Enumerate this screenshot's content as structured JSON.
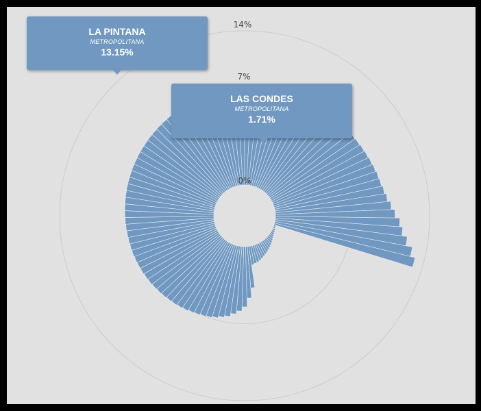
{
  "chart_data": {
    "type": "radial-bar",
    "ring_labels": [
      "14%",
      "7%",
      "0%"
    ],
    "rings": [
      14,
      7
    ],
    "rmax": 14,
    "grid": true,
    "series_color": "#7098c0",
    "values": [
      3.78,
      4.68,
      5.48,
      5.87,
      6.16,
      6.45,
      6.62,
      6.8,
      6.92,
      7.01,
      7.09,
      7.16,
      7.26,
      7.33,
      7.4,
      7.45,
      7.52,
      7.58,
      7.64,
      7.7,
      7.74,
      7.8,
      7.83,
      7.87,
      7.91,
      7.93,
      7.96,
      7.98,
      8.02,
      8.05,
      8.08,
      8.1,
      8.13,
      8.16,
      8.19,
      8.21,
      8.23,
      8.26,
      8.28,
      8.31,
      8.33,
      8.35,
      8.38,
      8.4,
      8.43,
      8.45,
      8.48,
      8.5,
      8.52,
      8.55,
      8.57,
      8.6,
      8.62,
      8.65,
      8.67,
      8.7,
      8.72,
      8.75,
      8.78,
      8.8,
      8.84,
      8.87,
      8.9,
      8.93,
      8.97,
      9.01,
      9.05,
      9.09,
      9.13,
      9.17,
      9.22,
      9.26,
      9.31,
      9.36,
      9.42,
      9.47,
      9.54,
      9.6,
      9.68,
      9.75,
      9.84,
      9.91,
      10.05,
      10.23,
      10.53,
      10.85,
      11.3,
      11.6,
      12.1,
      12.7,
      13.15,
      0.16,
      0.2,
      0.25,
      0.3,
      0.35,
      0.4,
      0.45,
      0.55,
      0.65,
      0.75,
      0.85,
      0.95,
      1.05,
      1.15,
      1.25,
      1.35,
      1.45,
      1.55,
      1.62,
      1.71
    ],
    "highlighted": [
      {
        "name": "LA PINTANA",
        "region": "METROPOLITANA",
        "value": "13.15%"
      },
      {
        "name": "LAS CONDES",
        "region": "METROPOLITANA",
        "value": "1.71%"
      }
    ]
  }
}
